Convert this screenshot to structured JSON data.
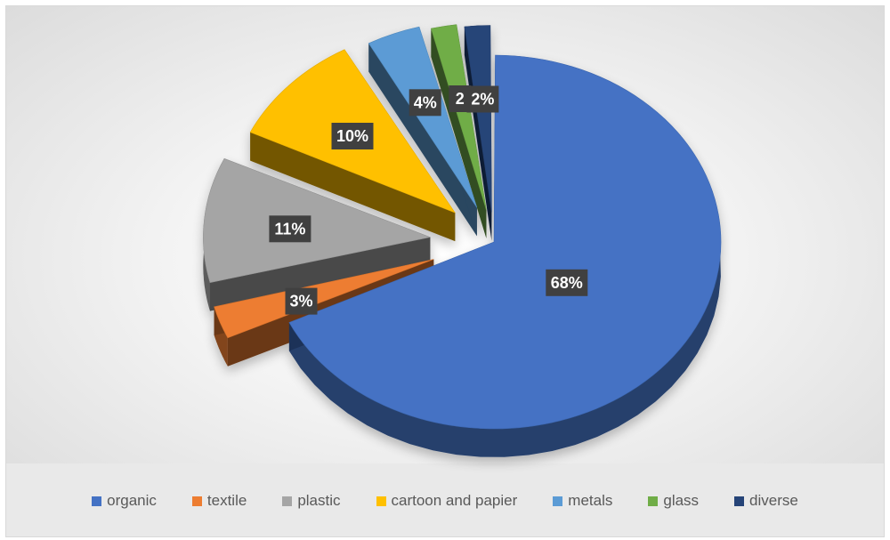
{
  "chart_data": {
    "type": "pie",
    "title": "",
    "legend_position": "bottom",
    "categories": [
      "organic",
      "textile",
      "plastic",
      "cartoon and papier",
      "metals",
      "glass",
      "diverse"
    ],
    "values": [
      68,
      3,
      11,
      10,
      4,
      2,
      2
    ],
    "data_labels": [
      "68%",
      "3%",
      "11%",
      "10%",
      "4%",
      "2",
      "2%"
    ],
    "colors": [
      "#4472C4",
      "#ED7D31",
      "#A5A5A5",
      "#FFC000",
      "#5B9BD5",
      "#70AD47",
      "#264478"
    ],
    "exploded": [
      "textile",
      "plastic",
      "cartoon and papier",
      "metals",
      "glass",
      "diverse"
    ],
    "style": "3d-exploded"
  }
}
